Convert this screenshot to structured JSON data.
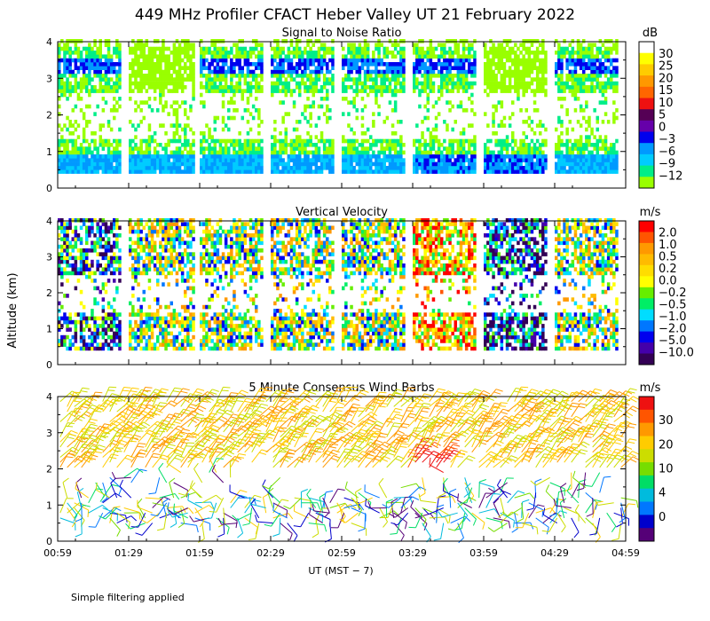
{
  "figure": {
    "title": "449 MHz Profiler CFACT Heber Valley UT 21 February 2022",
    "ylabel": "Altitude (km)",
    "xlabel": "UT  (MST − 7)",
    "footnote": "Simple filtering applied"
  },
  "chart_data": [
    {
      "type": "heatmap",
      "title": "Signal to Noise Ratio",
      "units": "dB",
      "x_ticks": [
        "00:59",
        "01:29",
        "01:59",
        "02:29",
        "02:59",
        "03:29",
        "03:59",
        "04:29",
        "04:59"
      ],
      "xlim_minutes_ut": [
        59,
        299
      ],
      "ylim_km": [
        0,
        4
      ],
      "y_ticks": [
        0,
        1,
        2,
        3,
        4
      ],
      "colorbar_labels": [
        "30",
        "25",
        "20",
        "15",
        "10",
        "5",
        "0",
        "−3",
        "−6",
        "−9",
        "−12"
      ],
      "colorbar_colors": [
        "#ffffff",
        "#ffff00",
        "#ffcc00",
        "#ff9900",
        "#ff6600",
        "#ee1111",
        "#550055",
        "#6600aa",
        "#0000ee",
        "#0099ff",
        "#00ccff",
        "#00ee88",
        "#99ff00"
      ],
      "data_blocks_ut": [
        {
          "start": "00:59",
          "end": "01:25"
        },
        {
          "start": "01:29",
          "end": "01:56"
        },
        {
          "start": "01:59",
          "end": "02:25"
        },
        {
          "start": "02:29",
          "end": "02:55"
        },
        {
          "start": "02:59",
          "end": "03:25"
        },
        {
          "start": "03:29",
          "end": "03:55"
        },
        {
          "start": "03:59",
          "end": "04:25"
        },
        {
          "start": "04:29",
          "end": "04:55"
        }
      ],
      "range_km": [
        0.4,
        4.0
      ]
    },
    {
      "type": "heatmap",
      "title": "Vertical Velocity",
      "units": "m/s",
      "x_ticks": [
        "00:59",
        "01:29",
        "01:59",
        "02:29",
        "02:59",
        "03:29",
        "03:59",
        "04:29",
        "04:59"
      ],
      "ylim_km": [
        0,
        4
      ],
      "y_ticks": [
        0,
        1,
        2,
        3,
        4
      ],
      "colorbar_labels": [
        "2.0",
        "1.0",
        "0.5",
        "0.2",
        "0.0",
        "−0.2",
        "−0.5",
        "−1.0",
        "−2.0",
        "−5.0",
        "−10.0"
      ],
      "colorbar_colors": [
        "#ff0000",
        "#ff5500",
        "#ff9900",
        "#ffbb00",
        "#ffdd00",
        "#ffff00",
        "#66ee00",
        "#00ee66",
        "#00ddff",
        "#0077ff",
        "#0000ee",
        "#4400aa",
        "#330055"
      ]
    },
    {
      "type": "wind_barbs",
      "title": "5 Minute Consensus Wind Barbs",
      "units": "m/s",
      "x_ticks": [
        "00:59",
        "01:29",
        "01:59",
        "02:29",
        "02:59",
        "03:29",
        "03:59",
        "04:29",
        "04:59"
      ],
      "ylim_km": [
        0,
        4
      ],
      "y_ticks": [
        0,
        1,
        2,
        3,
        4
      ],
      "colorbar_labels": [
        "30",
        "20",
        "10",
        "4",
        "0"
      ],
      "colorbar_colors": [
        "#ee1111",
        "#ff5500",
        "#ff9900",
        "#ffcc00",
        "#ccdd00",
        "#77dd00",
        "#00dd66",
        "#00bbdd",
        "#0077ff",
        "#0000cc",
        "#550077"
      ]
    }
  ]
}
